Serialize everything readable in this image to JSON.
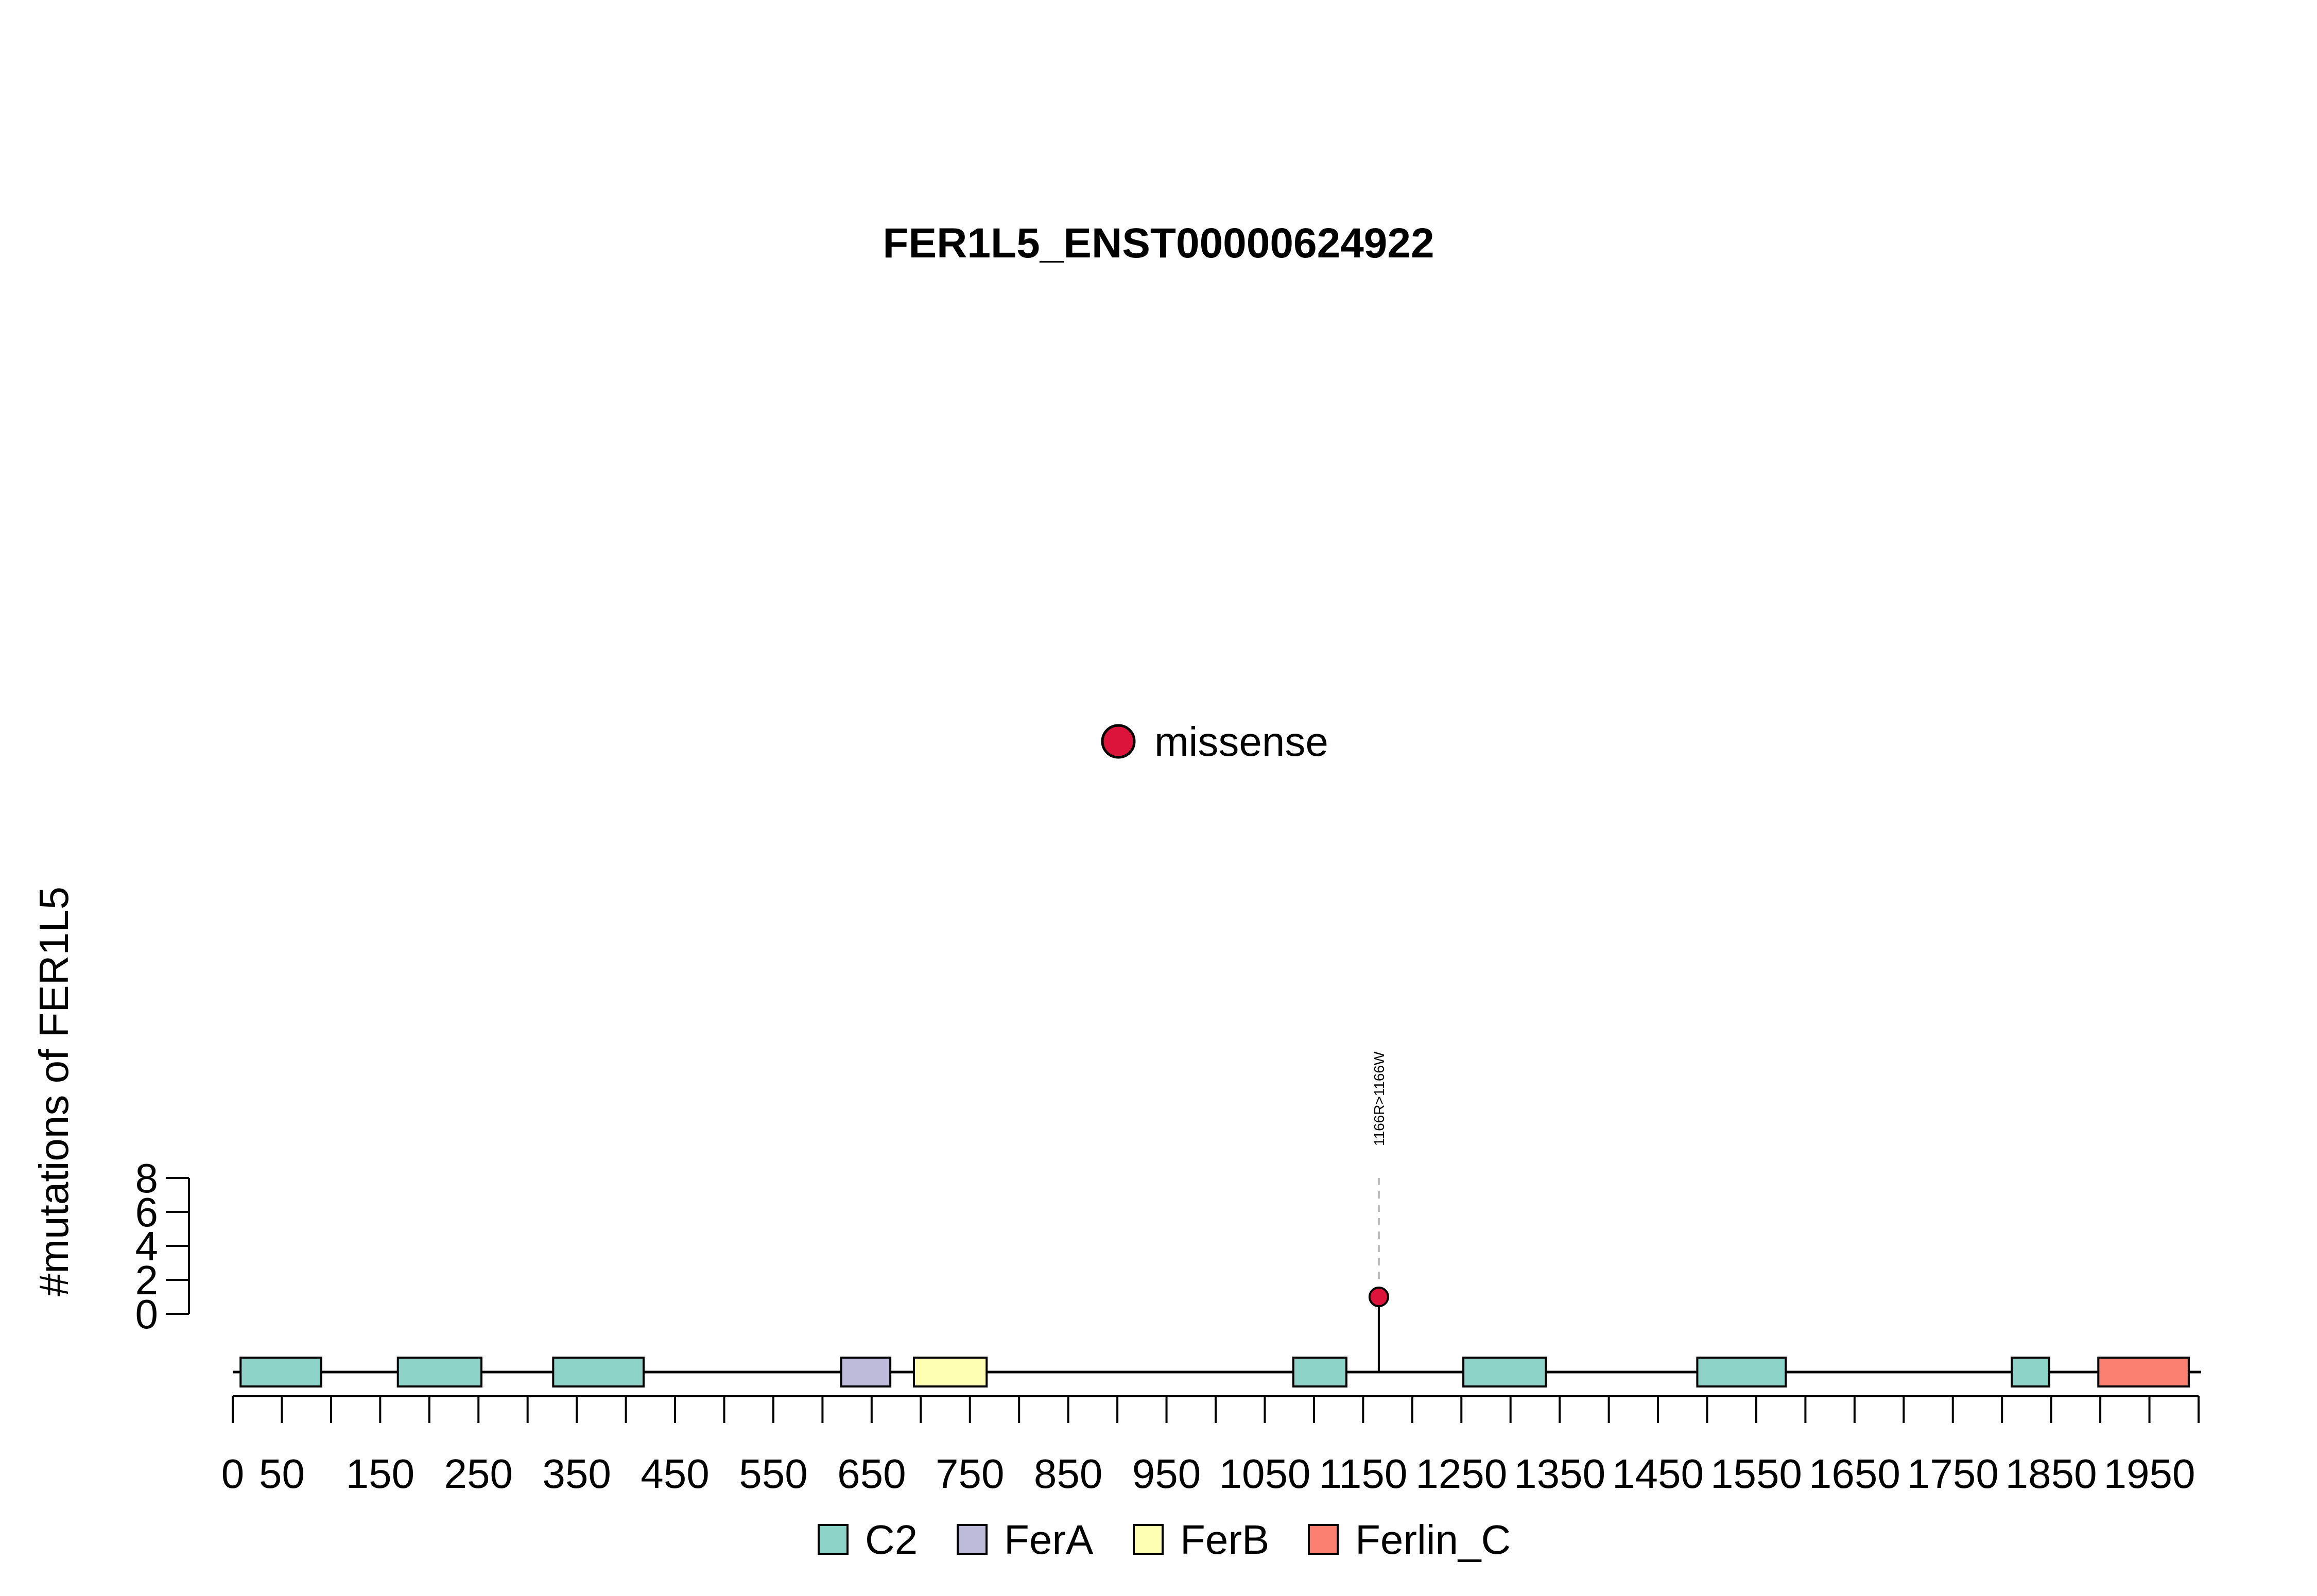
{
  "chart_data": {
    "type": "lollipop",
    "title": "FER1L5_ENST00000624922",
    "ylabel": "#mutations of FER1L5",
    "xlabel": "",
    "xlim": [
      0,
      2000
    ],
    "x_ticks": [
      0,
      50,
      100,
      150,
      200,
      250,
      300,
      350,
      400,
      450,
      500,
      550,
      600,
      650,
      700,
      750,
      800,
      850,
      900,
      950,
      1000,
      1050,
      1100,
      1150,
      1200,
      1250,
      1300,
      1350,
      1400,
      1450,
      1500,
      1550,
      1600,
      1650,
      1700,
      1750,
      1800,
      1850,
      1900,
      1950,
      2000
    ],
    "x_tick_labels": [
      {
        "value": 0,
        "text": "0"
      },
      {
        "value": 50,
        "text": "50"
      },
      {
        "value": 150,
        "text": "150"
      },
      {
        "value": 250,
        "text": "250"
      },
      {
        "value": 350,
        "text": "350"
      },
      {
        "value": 450,
        "text": "450"
      },
      {
        "value": 550,
        "text": "550"
      },
      {
        "value": 650,
        "text": "650"
      },
      {
        "value": 750,
        "text": "750"
      },
      {
        "value": 850,
        "text": "850"
      },
      {
        "value": 950,
        "text": "950"
      },
      {
        "value": 1050,
        "text": "1050"
      },
      {
        "value": 1150,
        "text": "1150"
      },
      {
        "value": 1250,
        "text": "1250"
      },
      {
        "value": 1350,
        "text": "1350"
      },
      {
        "value": 1450,
        "text": "1450"
      },
      {
        "value": 1550,
        "text": "1550"
      },
      {
        "value": 1650,
        "text": "1650"
      },
      {
        "value": 1750,
        "text": "1750"
      },
      {
        "value": 1850,
        "text": "1850"
      },
      {
        "value": 1950,
        "text": "1950"
      }
    ],
    "ylim": [
      0,
      8
    ],
    "y_ticks": [
      0,
      2,
      4,
      6,
      8
    ],
    "domains": [
      {
        "name": "C2",
        "start": 8,
        "end": 90
      },
      {
        "name": "C2",
        "start": 168,
        "end": 253
      },
      {
        "name": "C2",
        "start": 326,
        "end": 418
      },
      {
        "name": "FerA",
        "start": 619,
        "end": 669
      },
      {
        "name": "FerB",
        "start": 693,
        "end": 767
      },
      {
        "name": "C2",
        "start": 1079,
        "end": 1133
      },
      {
        "name": "C2",
        "start": 1252,
        "end": 1336
      },
      {
        "name": "C2",
        "start": 1490,
        "end": 1580
      },
      {
        "name": "C2",
        "start": 1810,
        "end": 1848
      },
      {
        "name": "Ferlin_C",
        "start": 1898,
        "end": 1990
      }
    ],
    "mutations": [
      {
        "position": 1166,
        "count": 1,
        "label": "1166R>1166W",
        "type": "missense"
      }
    ],
    "legend_top": [
      {
        "name": "missense",
        "color": "#dc143c"
      }
    ],
    "legend_bottom": [
      {
        "name": "C2",
        "color": "#8dd3c7"
      },
      {
        "name": "FerA",
        "color": "#bebada"
      },
      {
        "name": "FerB",
        "color": "#ffffb3"
      },
      {
        "name": "Ferlin_C",
        "color": "#fb8072"
      }
    ],
    "label_guide_max": 8,
    "grid": false
  }
}
